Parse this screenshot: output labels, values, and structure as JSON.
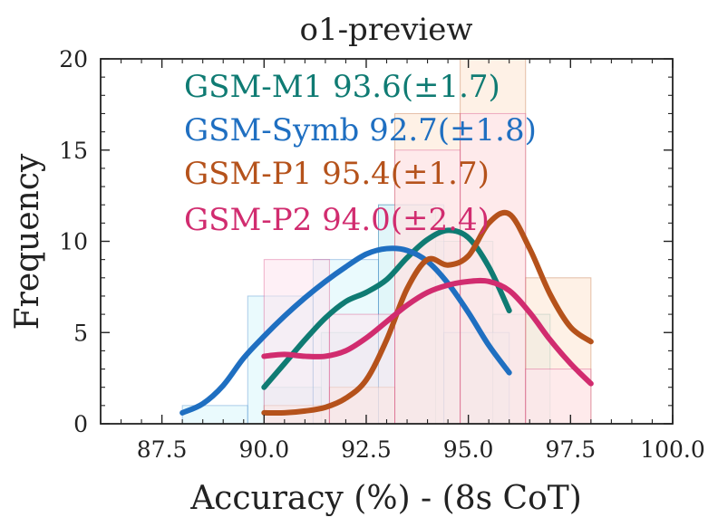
{
  "chart_data": {
    "type": "histogram",
    "title": "o1-preview",
    "xlabel": "Accuracy (%) - (8s CoT)",
    "ylabel": "Frequency",
    "xlim": [
      86.0,
      100.0
    ],
    "ylim": [
      0,
      20
    ],
    "xticks": [
      87.5,
      90.0,
      92.5,
      95.0,
      97.5,
      100.0
    ],
    "xtick_labels": [
      "87.5",
      "90.0",
      "92.5",
      "95.0",
      "97.5",
      "100.0"
    ],
    "yticks": [
      0,
      5,
      10,
      15,
      20
    ],
    "ytick_labels": [
      "0",
      "5",
      "10",
      "15",
      "20"
    ],
    "series": [
      {
        "name": "GSM-M1",
        "legend": "GSM-M1 93.6(±1.7)",
        "color": "#0f7b73",
        "fill": "#d9f0ee",
        "bins": [
          {
            "x0": 90.0,
            "x1": 91.4,
            "count": 2
          },
          {
            "x0": 91.4,
            "x1": 92.8,
            "count": 5
          },
          {
            "x0": 92.8,
            "x1": 94.2,
            "count": 12
          },
          {
            "x0": 94.2,
            "x1": 95.6,
            "count": 10
          },
          {
            "x0": 95.6,
            "x1": 97.0,
            "count": 6
          }
        ],
        "kde": [
          [
            90.0,
            2.0
          ],
          [
            90.5,
            3.3
          ],
          [
            91.0,
            4.6
          ],
          [
            91.5,
            5.8
          ],
          [
            92.0,
            6.7
          ],
          [
            92.5,
            7.2
          ],
          [
            93.0,
            7.9
          ],
          [
            93.5,
            9.1
          ],
          [
            94.0,
            10.1
          ],
          [
            94.5,
            10.6
          ],
          [
            95.0,
            10.2
          ],
          [
            95.5,
            8.6
          ],
          [
            96.0,
            6.2
          ]
        ]
      },
      {
        "name": "GSM-Symb",
        "legend": "GSM-Symb 92.7(±1.8)",
        "color": "#1f6fc1",
        "fill": "#d8f6fb",
        "bins": [
          {
            "x0": 88.0,
            "x1": 89.6,
            "count": 1
          },
          {
            "x0": 89.6,
            "x1": 91.2,
            "count": 7
          },
          {
            "x0": 91.2,
            "x1": 92.8,
            "count": 9
          },
          {
            "x0": 92.8,
            "x1": 94.4,
            "count": 12
          },
          {
            "x0": 94.4,
            "x1": 96.0,
            "count": 5
          }
        ],
        "kde": [
          [
            88.0,
            0.6
          ],
          [
            88.5,
            1.1
          ],
          [
            89.0,
            2.1
          ],
          [
            89.5,
            3.6
          ],
          [
            90.0,
            4.8
          ],
          [
            90.5,
            5.9
          ],
          [
            91.0,
            6.9
          ],
          [
            91.5,
            7.8
          ],
          [
            92.0,
            8.6
          ],
          [
            92.5,
            9.3
          ],
          [
            93.0,
            9.6
          ],
          [
            93.5,
            9.5
          ],
          [
            94.0,
            8.9
          ],
          [
            94.5,
            7.7
          ],
          [
            95.0,
            6.1
          ],
          [
            95.5,
            4.3
          ],
          [
            96.0,
            2.8
          ]
        ]
      },
      {
        "name": "GSM-P1",
        "legend": "GSM-P1 95.4(±1.7)",
        "color": "#b5521b",
        "fill": "#fde6d2",
        "bins": [
          {
            "x0": 90.0,
            "x1": 91.6,
            "count": 1
          },
          {
            "x0": 91.6,
            "x1": 93.2,
            "count": 2
          },
          {
            "x0": 93.2,
            "x1": 94.8,
            "count": 17
          },
          {
            "x0": 94.8,
            "x1": 96.4,
            "count": 20
          },
          {
            "x0": 96.4,
            "x1": 98.0,
            "count": 8
          }
        ],
        "kde": [
          [
            90.0,
            0.6
          ],
          [
            90.5,
            0.6
          ],
          [
            91.0,
            0.7
          ],
          [
            91.5,
            0.9
          ],
          [
            92.0,
            1.4
          ],
          [
            92.5,
            2.4
          ],
          [
            93.0,
            4.6
          ],
          [
            93.5,
            7.4
          ],
          [
            94.0,
            9.0
          ],
          [
            94.5,
            8.7
          ],
          [
            95.0,
            9.2
          ],
          [
            95.5,
            11.0
          ],
          [
            96.0,
            11.5
          ],
          [
            96.5,
            9.6
          ],
          [
            97.0,
            7.1
          ],
          [
            97.5,
            5.3
          ],
          [
            98.0,
            4.5
          ]
        ]
      },
      {
        "name": "GSM-P2",
        "legend": "GSM-P2 94.0(±2.4)",
        "color": "#d12c6f",
        "fill": "#fde3ee",
        "bins": [
          {
            "x0": 90.0,
            "x1": 91.6,
            "count": 9
          },
          {
            "x0": 91.6,
            "x1": 93.2,
            "count": 6
          },
          {
            "x0": 93.2,
            "x1": 94.8,
            "count": 15
          },
          {
            "x0": 94.8,
            "x1": 96.4,
            "count": 17
          },
          {
            "x0": 96.4,
            "x1": 98.0,
            "count": 3
          }
        ],
        "kde": [
          [
            90.0,
            3.7
          ],
          [
            90.5,
            3.8
          ],
          [
            91.0,
            3.7
          ],
          [
            91.5,
            3.7
          ],
          [
            92.0,
            4.0
          ],
          [
            92.5,
            4.7
          ],
          [
            93.0,
            5.6
          ],
          [
            93.5,
            6.5
          ],
          [
            94.0,
            7.2
          ],
          [
            94.5,
            7.6
          ],
          [
            95.0,
            7.8
          ],
          [
            95.5,
            7.8
          ],
          [
            96.0,
            7.3
          ],
          [
            96.5,
            6.1
          ],
          [
            97.0,
            4.6
          ],
          [
            97.5,
            3.3
          ],
          [
            98.0,
            2.2
          ]
        ]
      }
    ]
  }
}
